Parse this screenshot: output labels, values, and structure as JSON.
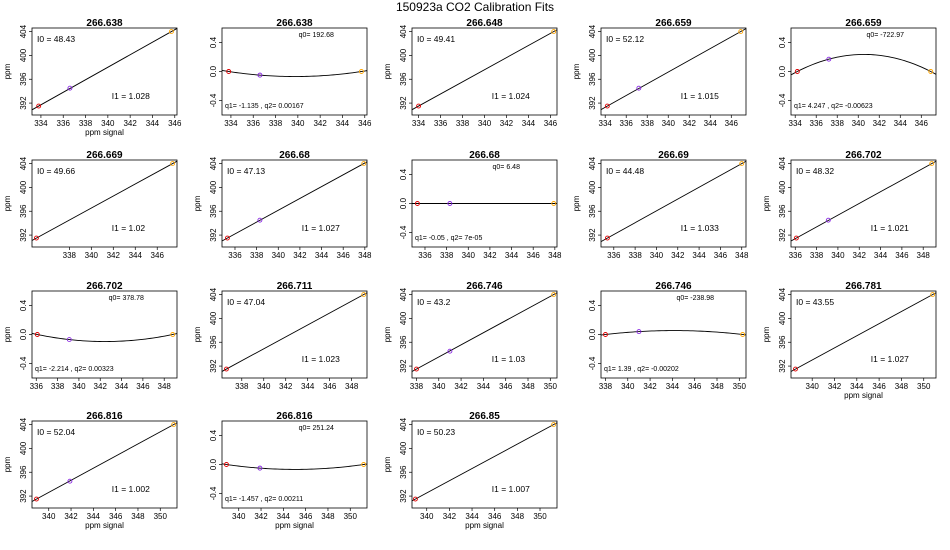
{
  "page_title": "150923a   CO2 Calibration Fits",
  "chart_data": [
    {
      "type": "line",
      "subtype": "linear",
      "title": "266.638",
      "xlabel": "ppm signal",
      "ylabel": "ppm",
      "xlim": [
        333.2,
        346.2
      ],
      "ylim": [
        390,
        404.6
      ],
      "xticks": [
        334,
        336,
        338,
        340,
        342,
        344,
        346
      ],
      "yticks": [
        392,
        396,
        400,
        404
      ],
      "points": [
        [
          333.8,
          391.5
        ],
        [
          336.6,
          394.5
        ],
        [
          345.7,
          404
        ]
      ],
      "annot_top": "I0 =  48.43",
      "annot_bottom": "I1 =  1.028"
    },
    {
      "type": "line",
      "subtype": "quadratic",
      "title": "266.638",
      "xlabel": "",
      "ylabel": "",
      "xlim": [
        333.2,
        346.2
      ],
      "ylim": [
        -0.6,
        0.6
      ],
      "xticks": [
        334,
        336,
        338,
        340,
        342,
        344,
        346
      ],
      "yticks": [
        -0.4,
        0.0,
        0.4
      ],
      "ytick_labels": [
        "-0.4",
        "0.0",
        "0.4"
      ],
      "points": [
        [
          333.8,
          0
        ],
        [
          336.6,
          -0.05
        ],
        [
          345.7,
          0
        ]
      ],
      "q0": 192.68,
      "q1": -1.135,
      "q2": 0.00167,
      "annot_top": "q0= 192.68",
      "annot_bottom": "q1= -1.135 , q2= 0.00167"
    },
    {
      "type": "line",
      "subtype": "linear",
      "title": "266.648",
      "xlabel": "",
      "ylabel": "ppm",
      "xlim": [
        333.4,
        346.6
      ],
      "ylim": [
        390,
        404.6
      ],
      "xticks": [
        334,
        336,
        338,
        340,
        342,
        344,
        346
      ],
      "yticks": [
        392,
        396,
        400,
        404
      ],
      "points": [
        [
          334,
          391.5
        ],
        [
          346.3,
          404
        ]
      ],
      "annot_top": "I0 =  49.41",
      "annot_bottom": "I1 =  1.024"
    },
    {
      "type": "line",
      "subtype": "linear",
      "title": "266.659",
      "xlabel": "",
      "ylabel": "ppm",
      "xlim": [
        333.6,
        347.4
      ],
      "ylim": [
        390,
        404.6
      ],
      "xticks": [
        334,
        336,
        338,
        340,
        342,
        344,
        346
      ],
      "yticks": [
        392,
        396,
        400,
        404
      ],
      "points": [
        [
          334.2,
          391.5
        ],
        [
          337.2,
          394.5
        ],
        [
          346.9,
          404
        ]
      ],
      "annot_top": "I0 =  52.12",
      "annot_bottom": "I1 =  1.015"
    },
    {
      "type": "line",
      "subtype": "quadratic",
      "title": "266.659",
      "xlabel": "",
      "ylabel": "",
      "xlim": [
        333.6,
        347.4
      ],
      "ylim": [
        -0.6,
        0.6
      ],
      "xticks": [
        334,
        336,
        338,
        340,
        342,
        344,
        346
      ],
      "yticks": [
        -0.4,
        0.0,
        0.4
      ],
      "ytick_labels": [
        "-0.4",
        "0.0",
        "0.4"
      ],
      "points": [
        [
          334.2,
          0
        ],
        [
          337.2,
          0.17
        ],
        [
          346.9,
          0
        ]
      ],
      "q0": -722.97,
      "q1": 4.247,
      "q2": -0.00623,
      "annot_top": "q0= -722.97",
      "annot_bottom": "q1= 4.247 , q2= -0.00623"
    },
    {
      "type": "line",
      "subtype": "linear",
      "title": "266.669",
      "xlabel": "",
      "ylabel": "ppm",
      "xlim": [
        334.6,
        347.8
      ],
      "ylim": [
        390,
        404.6
      ],
      "xticks": [
        338,
        340,
        342,
        344,
        346
      ],
      "yticks": [
        392,
        396,
        400,
        404
      ],
      "points": [
        [
          335,
          391.5
        ],
        [
          347.4,
          404
        ]
      ],
      "annot_top": "I0 =  49.66",
      "annot_bottom": "I1 =  1.02"
    },
    {
      "type": "line",
      "subtype": "linear",
      "title": "266.68",
      "xlabel": "",
      "ylabel": "ppm",
      "xlim": [
        334.8,
        348.2
      ],
      "ylim": [
        390,
        404.6
      ],
      "xticks": [
        336,
        338,
        340,
        342,
        344,
        346,
        348
      ],
      "yticks": [
        392,
        396,
        400,
        404
      ],
      "points": [
        [
          335.3,
          391.5
        ],
        [
          338.3,
          394.5
        ],
        [
          347.9,
          404
        ]
      ],
      "annot_top": "I0 =  47.13",
      "annot_bottom": "I1 =  1.027"
    },
    {
      "type": "line",
      "subtype": "quadratic",
      "title": "266.68",
      "xlabel": "",
      "ylabel": "",
      "xlim": [
        334.8,
        348.2
      ],
      "ylim": [
        -0.6,
        0.6
      ],
      "xticks": [
        336,
        338,
        340,
        342,
        344,
        346,
        348
      ],
      "yticks": [
        -0.4,
        0.0,
        0.4
      ],
      "ytick_labels": [
        "-0.4",
        "0.0",
        "0.4"
      ],
      "points": [
        [
          335.3,
          0
        ],
        [
          338.3,
          0
        ],
        [
          347.9,
          0
        ]
      ],
      "q0": 6.48,
      "q1": -0.05,
      "q2": 7e-05,
      "annot_top": "q0= 6.48",
      "annot_bottom": "q1= -0.05 , q2= 7e-05"
    },
    {
      "type": "line",
      "subtype": "linear",
      "title": "266.69",
      "xlabel": "",
      "ylabel": "ppm",
      "xlim": [
        334.8,
        348.4
      ],
      "ylim": [
        390,
        404.6
      ],
      "xticks": [
        336,
        338,
        340,
        342,
        344,
        346,
        348
      ],
      "yticks": [
        392,
        396,
        400,
        404
      ],
      "points": [
        [
          335.4,
          391.5
        ],
        [
          348,
          404
        ]
      ],
      "annot_top": "I0 =  44.48",
      "annot_bottom": "I1 =  1.033"
    },
    {
      "type": "line",
      "subtype": "linear",
      "title": "266.702",
      "xlabel": "",
      "ylabel": "ppm",
      "xlim": [
        335.6,
        349.2
      ],
      "ylim": [
        390,
        404.6
      ],
      "xticks": [
        336,
        338,
        340,
        342,
        344,
        346,
        348
      ],
      "yticks": [
        392,
        396,
        400,
        404
      ],
      "points": [
        [
          336.1,
          391.5
        ],
        [
          339.1,
          394.5
        ],
        [
          348.8,
          404
        ]
      ],
      "annot_top": "I0 =  48.32",
      "annot_bottom": "I1 =  1.021"
    },
    {
      "type": "line",
      "subtype": "quadratic",
      "title": "266.702",
      "xlabel": "",
      "ylabel": "ppm",
      "xlim": [
        335.6,
        349.2
      ],
      "ylim": [
        -0.6,
        0.6
      ],
      "xticks": [
        336,
        338,
        340,
        342,
        344,
        346,
        348
      ],
      "yticks": [
        -0.4,
        0.0,
        0.4
      ],
      "ytick_labels": [
        "-0.4",
        "0.0",
        "0.4"
      ],
      "points": [
        [
          336.1,
          0
        ],
        [
          339.1,
          -0.07
        ],
        [
          348.8,
          0
        ]
      ],
      "q0": 378.78,
      "q1": -2.214,
      "q2": 0.00323,
      "annot_top": "q0= 378.78",
      "annot_bottom": "q1= -2.214 , q2= 0.00323"
    },
    {
      "type": "line",
      "subtype": "linear",
      "title": "266.711",
      "xlabel": "",
      "ylabel": "ppm",
      "xlim": [
        336.2,
        349.4
      ],
      "ylim": [
        390,
        404.6
      ],
      "xticks": [
        338,
        340,
        342,
        344,
        346,
        348
      ],
      "yticks": [
        392,
        396,
        400,
        404
      ],
      "points": [
        [
          336.6,
          391.5
        ],
        [
          349.1,
          404
        ]
      ],
      "annot_top": "I0 =  47.04",
      "annot_bottom": "I1 =  1.023"
    },
    {
      "type": "line",
      "subtype": "linear",
      "title": "266.746",
      "xlabel": "",
      "ylabel": "ppm",
      "xlim": [
        337.6,
        350.6
      ],
      "ylim": [
        390,
        404.6
      ],
      "xticks": [
        338,
        340,
        342,
        344,
        346,
        348,
        350
      ],
      "yticks": [
        392,
        396,
        400,
        404
      ],
      "points": [
        [
          338,
          391.5
        ],
        [
          341,
          394.5
        ],
        [
          350.3,
          404
        ]
      ],
      "annot_top": "I0 =  43.2",
      "annot_bottom": "I1 =  1.03"
    },
    {
      "type": "line",
      "subtype": "quadratic",
      "title": "266.746",
      "xlabel": "",
      "ylabel": "",
      "xlim": [
        337.6,
        350.6
      ],
      "ylim": [
        -0.6,
        0.6
      ],
      "xticks": [
        338,
        340,
        342,
        344,
        346,
        348,
        350
      ],
      "yticks": [
        -0.4,
        0.0,
        0.4
      ],
      "ytick_labels": [
        "-0.4",
        "0.0",
        "0.4"
      ],
      "points": [
        [
          338,
          0
        ],
        [
          341,
          0.04
        ],
        [
          350.3,
          0
        ]
      ],
      "q0": -238.98,
      "q1": 1.39,
      "q2": -0.00202,
      "annot_top": "q0= -238.98",
      "annot_bottom": "q1= 1.39 , q2= -0.00202"
    },
    {
      "type": "line",
      "subtype": "linear",
      "title": "266.781",
      "xlabel": "ppm signal",
      "ylabel": "ppm",
      "xlim": [
        338.1,
        351.1
      ],
      "ylim": [
        390,
        404.6
      ],
      "xticks": [
        340,
        342,
        344,
        346,
        348,
        350
      ],
      "yticks": [
        392,
        396,
        400,
        404
      ],
      "points": [
        [
          338.5,
          391.5
        ],
        [
          350.8,
          404
        ]
      ],
      "annot_top": "I0 =  43.55",
      "annot_bottom": "I1 =  1.027"
    },
    {
      "type": "line",
      "subtype": "linear",
      "title": "266.816",
      "xlabel": "ppm signal",
      "ylabel": "ppm",
      "xlim": [
        338.5,
        351.5
      ],
      "ylim": [
        390,
        404.6
      ],
      "xticks": [
        340,
        342,
        344,
        346,
        348,
        350
      ],
      "yticks": [
        392,
        396,
        400,
        404
      ],
      "points": [
        [
          338.9,
          391.5
        ],
        [
          341.9,
          394.5
        ],
        [
          351.2,
          404
        ]
      ],
      "annot_top": "I0 =  52.04",
      "annot_bottom": "I1 =  1.002"
    },
    {
      "type": "line",
      "subtype": "quadratic",
      "title": "266.816",
      "xlabel": "ppm signal",
      "ylabel": "",
      "xlim": [
        338.5,
        351.5
      ],
      "ylim": [
        -0.6,
        0.6
      ],
      "xticks": [
        340,
        342,
        344,
        346,
        348,
        350
      ],
      "yticks": [
        -0.4,
        0.0,
        0.4
      ],
      "ytick_labels": [
        "-0.4",
        "0.0",
        "0.4"
      ],
      "points": [
        [
          338.9,
          0
        ],
        [
          341.9,
          -0.05
        ],
        [
          351.2,
          0
        ]
      ],
      "q0": 251.24,
      "q1": -1.457,
      "q2": 0.00211,
      "annot_top": "q0= 251.24",
      "annot_bottom": "q1= -1.457 , q2= 0.00211"
    },
    {
      "type": "line",
      "subtype": "linear",
      "title": "266.85",
      "xlabel": "ppm signal",
      "ylabel": "ppm",
      "xlim": [
        338.7,
        351.5
      ],
      "ylim": [
        390,
        404.6
      ],
      "xticks": [
        340,
        342,
        344,
        346,
        348,
        350
      ],
      "yticks": [
        392,
        396,
        400,
        404
      ],
      "points": [
        [
          339,
          391.5
        ],
        [
          351.2,
          404
        ]
      ],
      "annot_top": "I0 =  50.23",
      "annot_bottom": "I1 =  1.007"
    }
  ],
  "point_colors": [
    "#e00000",
    "#8a2be2",
    "#ffa500"
  ],
  "line_color": "#000000"
}
